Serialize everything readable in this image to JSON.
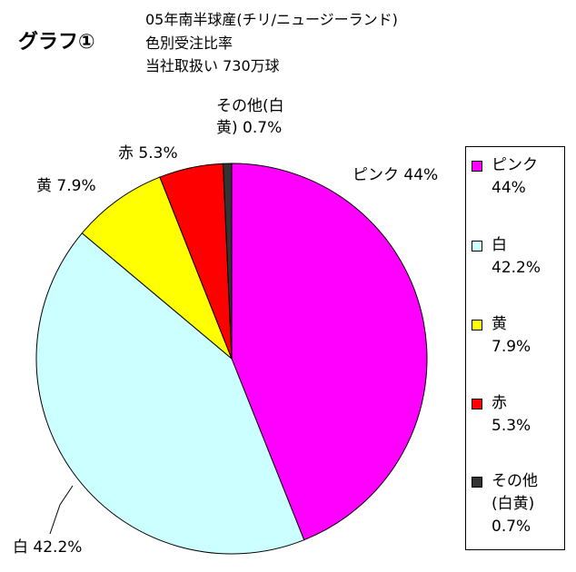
{
  "header": {
    "graph_label": "グラフ①",
    "desc_lines": [
      "05年南半球産(チリ/ニュージーランド)",
      "色別受注比率",
      "当社取扱い 730万球"
    ]
  },
  "chart_data": {
    "type": "pie",
    "title": "05年南半球産(チリ/ニュージーランド) 色別受注比率",
    "subtitle": "当社取扱い 730万球",
    "categories": [
      "ピンク",
      "白",
      "黄",
      "赤",
      "その他(白黄)"
    ],
    "values": [
      44,
      42.2,
      7.9,
      5.3,
      0.7
    ],
    "colors": [
      "#ff00ff",
      "#ccffff",
      "#ffff00",
      "#ff0000",
      "#333333"
    ],
    "data_labels": [
      "ピンク 44%",
      "白 42.2%",
      "黄 7.9%",
      "赤 5.3%",
      "その他(白\n黄) 0.7%"
    ],
    "legend_labels": [
      {
        "name": "ピンク",
        "value": "44%"
      },
      {
        "name": "白",
        "value": "42.2%"
      },
      {
        "name": "黄",
        "value": "7.9%"
      },
      {
        "name": "赤",
        "value": "5.3%"
      },
      {
        "name": "その他\n(白黄)",
        "value": "0.7%"
      }
    ],
    "legend_position": "right"
  }
}
